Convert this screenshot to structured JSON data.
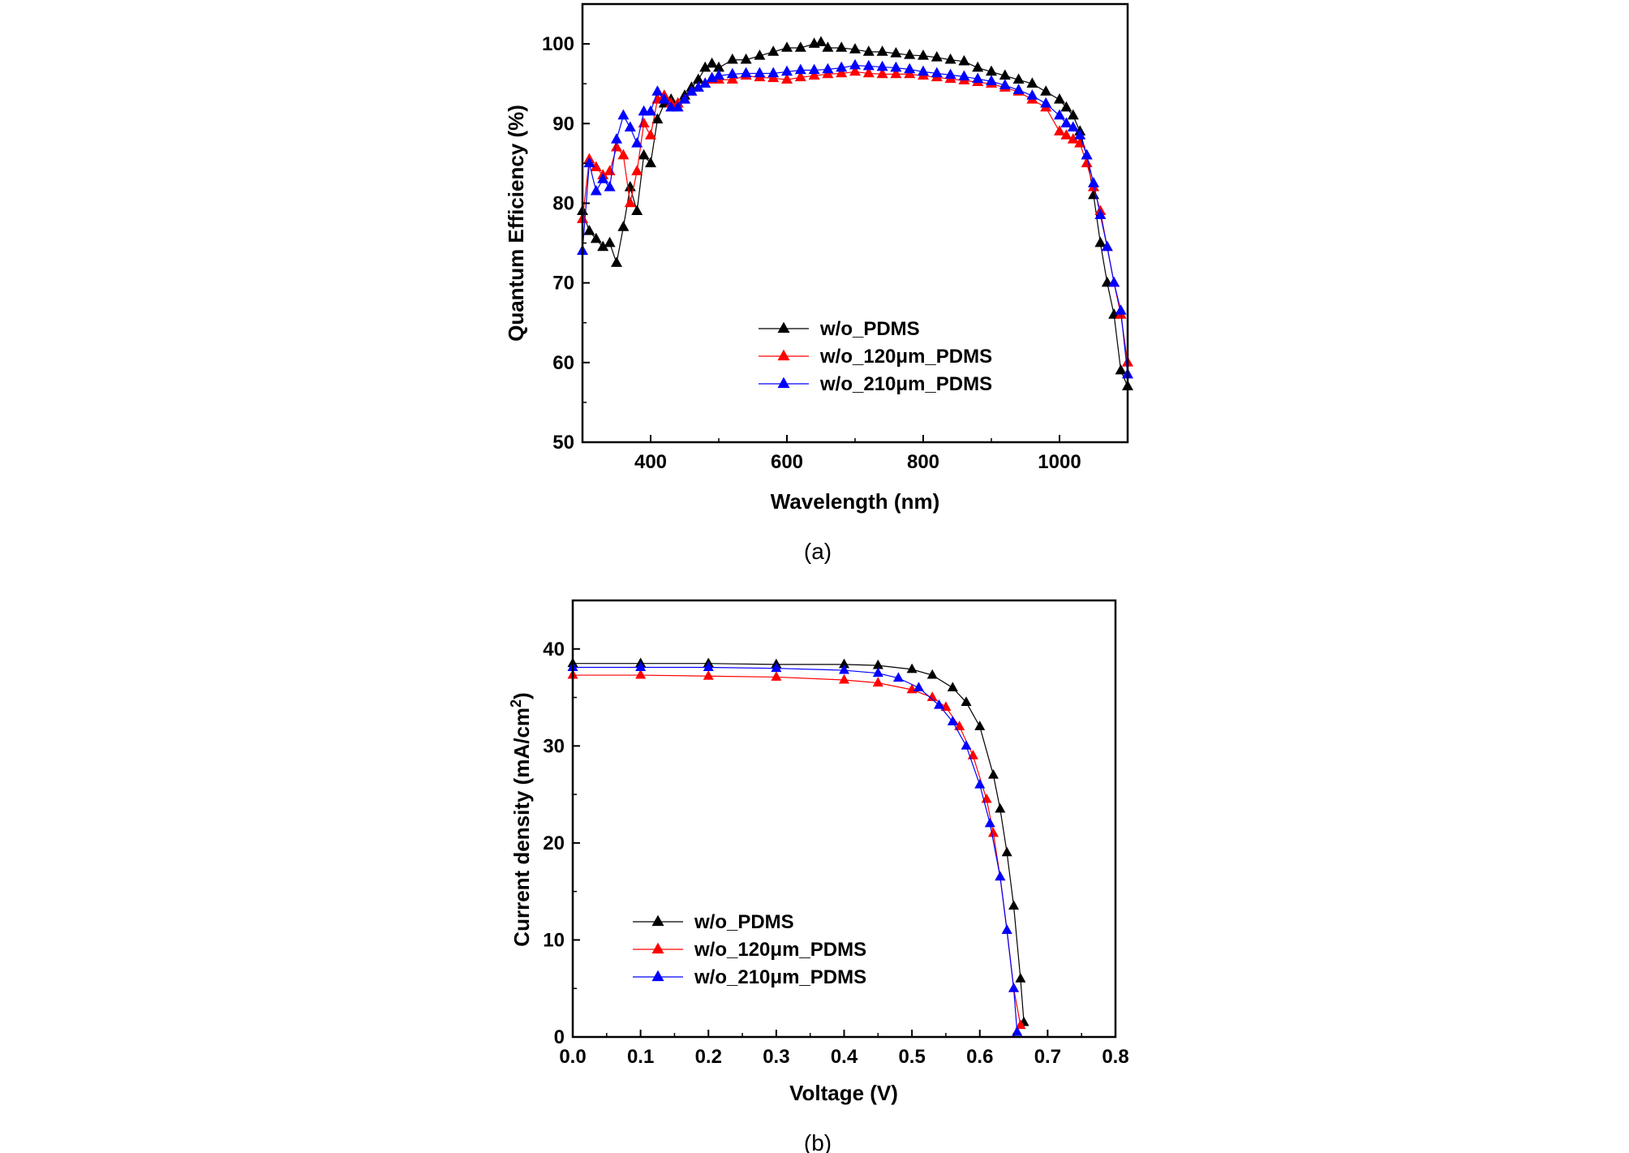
{
  "chart_data": [
    {
      "type": "line",
      "panel_label": "(a)",
      "title": "",
      "xlabel": "Wavelength (nm)",
      "ylabel": "Quantum Efficiency (%)",
      "xlim": [
        300,
        1100
      ],
      "ylim": [
        50,
        105
      ],
      "xticks": [
        400,
        600,
        800,
        1000
      ],
      "yticks": [
        50,
        60,
        70,
        80,
        90,
        100
      ],
      "legend_position": "lower-center",
      "grid": false,
      "marker": "triangle",
      "series": [
        {
          "name": "w/o_PDMS",
          "color": "#000000",
          "x": [
            300,
            310,
            320,
            330,
            340,
            350,
            360,
            370,
            380,
            390,
            400,
            410,
            420,
            430,
            440,
            450,
            460,
            470,
            480,
            490,
            500,
            520,
            540,
            560,
            580,
            600,
            620,
            640,
            650,
            660,
            680,
            700,
            720,
            740,
            760,
            780,
            800,
            820,
            840,
            860,
            880,
            900,
            920,
            940,
            960,
            980,
            1000,
            1010,
            1020,
            1030,
            1040,
            1050,
            1060,
            1070,
            1080,
            1090,
            1100
          ],
          "y": [
            79,
            76.5,
            75.5,
            74.5,
            75,
            72.5,
            77,
            82,
            79,
            86,
            85,
            90.5,
            92.5,
            93,
            92.5,
            93.5,
            94.5,
            95.5,
            97,
            97.5,
            97,
            98,
            98,
            98.5,
            99,
            99.5,
            99.5,
            100,
            100.2,
            99.5,
            99.5,
            99.3,
            99,
            99,
            98.8,
            98.6,
            98.5,
            98.3,
            98,
            97.8,
            97,
            96.5,
            96,
            95.5,
            95,
            94,
            93,
            92,
            91,
            89,
            86,
            81,
            75,
            70,
            66,
            59,
            57
          ]
        },
        {
          "name": "w/o_120μm_PDMS",
          "color": "#ff0000",
          "x": [
            300,
            310,
            320,
            330,
            340,
            350,
            360,
            370,
            380,
            390,
            400,
            410,
            420,
            430,
            440,
            450,
            460,
            470,
            480,
            490,
            500,
            520,
            540,
            560,
            580,
            600,
            620,
            640,
            660,
            680,
            700,
            720,
            740,
            760,
            780,
            800,
            820,
            840,
            860,
            880,
            900,
            920,
            940,
            960,
            980,
            1000,
            1010,
            1020,
            1030,
            1040,
            1050,
            1060,
            1070,
            1080,
            1090,
            1100
          ],
          "y": [
            78,
            85.5,
            84.5,
            83.5,
            84,
            87,
            86,
            80,
            84,
            90,
            88.5,
            93,
            93.5,
            92.5,
            92.5,
            93,
            94,
            94.5,
            95,
            95.5,
            95.5,
            95.5,
            96,
            95.8,
            95.7,
            95.5,
            95.8,
            96,
            96.2,
            96.3,
            96.5,
            96.3,
            96.2,
            96.2,
            96.2,
            96,
            95.8,
            95.6,
            95.4,
            95.2,
            95,
            94.5,
            94,
            93,
            92,
            89,
            88.5,
            88,
            87.5,
            85,
            82,
            79,
            74.5,
            70,
            66,
            60
          ]
        },
        {
          "name": "w/o_210μm_PDMS",
          "color": "#0000ff",
          "x": [
            300,
            310,
            320,
            330,
            340,
            350,
            360,
            370,
            380,
            390,
            400,
            410,
            420,
            430,
            440,
            450,
            460,
            470,
            480,
            490,
            500,
            520,
            540,
            560,
            580,
            600,
            620,
            640,
            660,
            680,
            700,
            720,
            740,
            760,
            780,
            800,
            820,
            840,
            860,
            880,
            900,
            920,
            940,
            960,
            980,
            1000,
            1010,
            1020,
            1030,
            1040,
            1050,
            1060,
            1070,
            1080,
            1090,
            1100
          ],
          "y": [
            74,
            85,
            81.5,
            83,
            82,
            88,
            91,
            89.5,
            87.5,
            91.5,
            91.5,
            94,
            93,
            92,
            92,
            93,
            94,
            94.5,
            95,
            95.7,
            96,
            96.2,
            96.3,
            96.3,
            96.3,
            96.5,
            96.7,
            96.7,
            96.8,
            97,
            97.3,
            97.2,
            97.1,
            97,
            96.8,
            96.5,
            96.3,
            96.1,
            95.9,
            95.6,
            95.3,
            94.8,
            94.2,
            93.5,
            92.5,
            91,
            90,
            89.5,
            88.5,
            86,
            82.5,
            78.5,
            74.5,
            70,
            66.5,
            58.5
          ]
        }
      ]
    },
    {
      "type": "line",
      "panel_label": "(b)",
      "title": "",
      "xlabel": "Voltage (V)",
      "ylabel": "Current density (mA/cm",
      "ylabel_sup": "2",
      "ylabel_tail": ")",
      "xlim": [
        0,
        0.8
      ],
      "ylim": [
        0,
        45
      ],
      "xticks": [
        0.0,
        0.1,
        0.2,
        0.3,
        0.4,
        0.5,
        0.6,
        0.7,
        0.8
      ],
      "xtick_labels": [
        "0.0",
        "0.1",
        "0.2",
        "0.3",
        "0.4",
        "0.5",
        "0.6",
        "0.7",
        "0.8"
      ],
      "yticks": [
        0,
        10,
        20,
        30,
        40
      ],
      "legend_position": "lower-left",
      "grid": false,
      "marker": "triangle",
      "series": [
        {
          "name": "w/o_PDMS",
          "color": "#000000",
          "x": [
            0,
            0.1,
            0.2,
            0.3,
            0.4,
            0.45,
            0.5,
            0.53,
            0.56,
            0.58,
            0.6,
            0.62,
            0.63,
            0.64,
            0.65,
            0.66,
            0.665
          ],
          "y": [
            38.5,
            38.5,
            38.5,
            38.4,
            38.4,
            38.3,
            37.9,
            37.3,
            36,
            34.5,
            32,
            27,
            23.5,
            19,
            13.5,
            6,
            1.5
          ]
        },
        {
          "name": "w/o_120μm_PDMS",
          "color": "#ff0000",
          "x": [
            0,
            0.1,
            0.2,
            0.3,
            0.4,
            0.45,
            0.5,
            0.53,
            0.55,
            0.57,
            0.59,
            0.61,
            0.62,
            0.63,
            0.64,
            0.65,
            0.66
          ],
          "y": [
            37.3,
            37.3,
            37.2,
            37.1,
            36.8,
            36.5,
            35.8,
            35,
            34,
            32,
            29,
            24.5,
            21,
            16.5,
            11,
            5,
            1.2
          ]
        },
        {
          "name": "w/o_210μm_PDMS",
          "color": "#0000ff",
          "x": [
            0,
            0.1,
            0.2,
            0.3,
            0.4,
            0.45,
            0.48,
            0.51,
            0.54,
            0.56,
            0.58,
            0.6,
            0.615,
            0.63,
            0.64,
            0.65,
            0.655
          ],
          "y": [
            38.1,
            38.1,
            38.1,
            38,
            37.8,
            37.5,
            37,
            36,
            34.2,
            32.5,
            30,
            26,
            22,
            16.5,
            11,
            5,
            0.5
          ]
        }
      ]
    }
  ]
}
